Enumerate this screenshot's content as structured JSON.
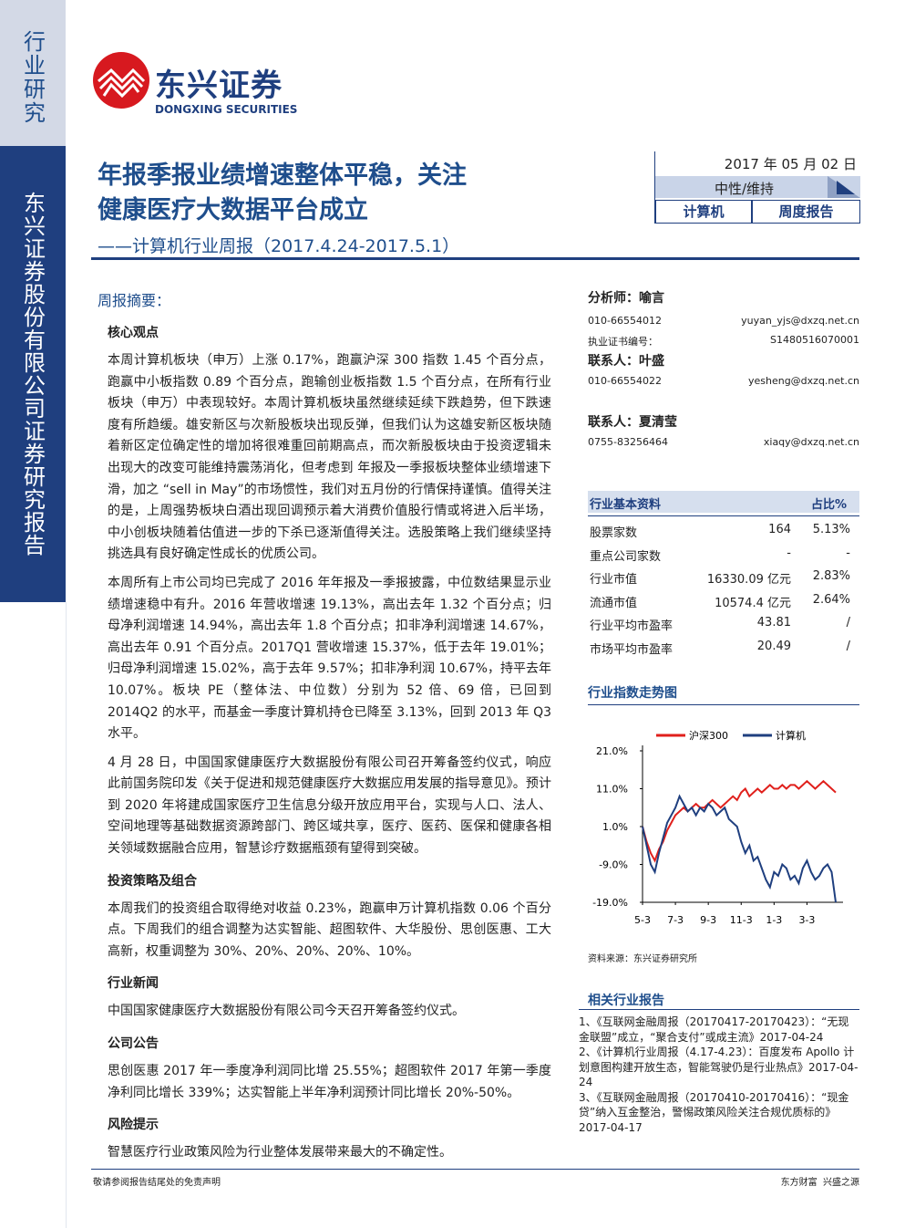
{
  "sidebar": {
    "top": "行业研究",
    "bottom": "东兴证券股份有限公司证券研究报告"
  },
  "logo": {
    "cn": "东兴证券",
    "en": "DONGXING SECURITIES"
  },
  "header": {
    "title_lines": [
      "年报季报业绩增速整体平稳，关注",
      "健康医疗大数据平台成立"
    ],
    "subtitle": "——计算机行业周报（2017.4.24-2017.5.1）",
    "date": "2017 年 05 月 02 日",
    "rating": "中性/维持",
    "tags": [
      "计算机",
      "周度报告"
    ]
  },
  "summary": {
    "heading": "周报摘要：",
    "sections": [
      {
        "title": "核心观点",
        "paragraphs": [
          "本周计算机板块（申万）上涨 0.17%，跑赢沪深 300 指数 1.45 个百分点，跑赢中小板指数 0.89 个百分点，跑输创业板指数 1.5 个百分点，在所有行业板块（申万）中表现较好。本周计算机板块虽然继续延续下跌趋势，但下跌速度有所趋缓。雄安新区与次新股板块出现反弹，但我们认为这雄安新区板块随着新区定位确定性的增加将很难重回前期高点，而次新股板块由于投资逻辑未出现大的改变可能维持震荡消化，但考虑到 年报及一季报板块整体业绩增速下滑，加之 “sell in May”的市场惯性，我们对五月份的行情保持谨慎。值得关注的是，上周强势板块白酒出现回调预示着大消费价值股行情或将进入后半场，中小创板块随着估值进一步的下杀已逐渐值得关注。选股策略上我们继续坚持挑选具有良好确定性成长的优质公司。",
          "本周所有上市公司均已完成了 2016 年年报及一季报披露，中位数结果显示业绩增速稳中有升。2016 年营收增速 19.13%，高出去年 1.32 个百分点；归母净利润增速 14.94%，高出去年 1.8 个百分点；扣非净利润增速 14.67%，高出去年 0.91 个百分点。2017Q1 营收增速 15.37%，低于去年 19.01%；归母净利润增速 15.02%，高于去年 9.57%；扣非净利润 10.67%，持平去年 10.07%。板块 PE（整体法、中位数）分别为 52 倍、69 倍，已回到 2014Q2 的水平，而基金一季度计算机持仓已降至 3.13%，回到 2013 年 Q3 水平。",
          "4 月 28 日，中国国家健康医疗大数据股份有限公司召开筹备签约仪式，响应此前国务院印发《关于促进和规范健康医疗大数据应用发展的指导意见》。预计到 2020 年将建成国家医疗卫生信息分级开放应用平台，实现与人口、法人、空间地理等基础数据资源跨部门、跨区域共享，医疗、医药、医保和健康各相关领域数据融合应用，智慧诊疗数据瓶颈有望得到突破。"
        ]
      },
      {
        "title": "投资策略及组合",
        "paragraphs": [
          "本周我们的投资组合取得绝对收益 0.23%，跑赢申万计算机指数 0.06 个百分点。下周我们的组合调整为达实智能、超图软件、大华股份、思创医惠、工大高新，权重调整为 30%、20%、20%、20%、10%。"
        ]
      },
      {
        "title": "行业新闻",
        "paragraphs": [
          "中国国家健康医疗大数据股份有限公司今天召开筹备签约仪式。"
        ]
      },
      {
        "title": "公司公告",
        "paragraphs": [
          "思创医惠 2017 年一季度净利润同比增 25.55%；超图软件 2017 年第一季度净利同比增长 339%；达实智能上半年净利润预计同比增长 20%-50%。"
        ]
      },
      {
        "title": "风险提示",
        "paragraphs": [
          "智慧医疗行业政策风险为行业整体发展带来最大的不确定性。"
        ]
      }
    ]
  },
  "analysts": [
    {
      "role": "分析师：",
      "name": "喻言",
      "phone": "010-66554012",
      "email": "yuyan_yjs@dxzq.net.cn",
      "cert_label": "执业证书编号：",
      "cert": "S1480516070001"
    },
    {
      "role": "联系人：",
      "name": "叶盛",
      "phone": "010-66554022",
      "email": "yesheng@dxzq.net.cn"
    },
    {
      "role": "联系人：",
      "name": "夏清莹",
      "phone": "0755-83256464",
      "email": "xiaqy@dxzq.net.cn"
    }
  ],
  "industry_table": {
    "headers": [
      "行业基本资料",
      "占比%"
    ],
    "rows": [
      [
        "股票家数",
        "164",
        "5.13%"
      ],
      [
        "重点公司家数",
        "-",
        "-"
      ],
      [
        "行业市值",
        "16330.09 亿元",
        "2.83%"
      ],
      [
        "流通市值",
        "10574.4 亿元",
        "2.64%"
      ],
      [
        "行业平均市盈率",
        "43.81",
        "/"
      ],
      [
        "市场平均市盈率",
        "20.49",
        "/"
      ]
    ]
  },
  "chart_data": {
    "type": "line",
    "title": "行业指数走势图",
    "source": "资料来源：东兴证券研究所",
    "categories": [
      "5-3",
      null,
      null,
      null,
      null,
      null,
      null,
      null,
      "7-3",
      null,
      null,
      null,
      null,
      null,
      null,
      null,
      "9-3",
      null,
      null,
      null,
      null,
      null,
      null,
      null,
      "11-3",
      null,
      null,
      null,
      null,
      null,
      null,
      null,
      "1-3",
      null,
      null,
      null,
      null,
      null,
      null,
      null,
      "3-3",
      null,
      null,
      null,
      null,
      null,
      null,
      null
    ],
    "series": [
      {
        "name": "沪深300",
        "color": "#e0201c",
        "values": [
          1,
          -3,
          -6,
          -8,
          -5,
          -3,
          0,
          2,
          4,
          5,
          6,
          5,
          6,
          7,
          6,
          6,
          7,
          8,
          7,
          6,
          7,
          8,
          9,
          8,
          10,
          11,
          9,
          10,
          11,
          10,
          11,
          12,
          11,
          11,
          12,
          11,
          12,
          12,
          11,
          12,
          13,
          12,
          11,
          12,
          13,
          12,
          11,
          10
        ]
      },
      {
        "name": "计算机",
        "color": "#1f3f7f",
        "values": [
          1,
          -4,
          -9,
          -11,
          -6,
          -2,
          2,
          4,
          6,
          9,
          7,
          5,
          6,
          4,
          6,
          5,
          7,
          6,
          4,
          5,
          6,
          3,
          2,
          1,
          -3,
          -6,
          -4,
          -8,
          -7,
          -10,
          -13,
          -15,
          -11,
          -12,
          -9,
          -10,
          -13,
          -12,
          -14,
          -10,
          -8,
          -11,
          -13,
          -12,
          -10,
          -9,
          -11,
          -19
        ]
      }
    ],
    "ylim": [
      -19,
      21
    ],
    "yticks": [
      {
        "value": 21,
        "label": "21.0%"
      },
      {
        "value": 11,
        "label": "11.0%"
      },
      {
        "value": 1,
        "label": "1.0%"
      },
      {
        "value": -9,
        "label": "-9.0%"
      },
      {
        "value": -19,
        "label": "-19.0%"
      }
    ],
    "grid": false
  },
  "related": {
    "heading": "相关行业报告",
    "items": [
      "1、《互联网金融周报（20170417-20170423）：“无现金联盟”成立，“聚合支付”或成主流》2017-04-24",
      "2、《计算机行业周报（4.17-4.23）：百度发布 Apollo 计划意图构建开放生态，智能驾驶仍是行业热点》2017-04-24",
      "3、《互联网金融周报（20170410-20170416）：“现金贷”纳入互金整治，警惕政策风险关注合规优质标的》2017-04-17"
    ]
  },
  "footer": {
    "left": "敬请参阅报告结尾处的免责声明",
    "right": "东方财富  兴盛之源"
  }
}
